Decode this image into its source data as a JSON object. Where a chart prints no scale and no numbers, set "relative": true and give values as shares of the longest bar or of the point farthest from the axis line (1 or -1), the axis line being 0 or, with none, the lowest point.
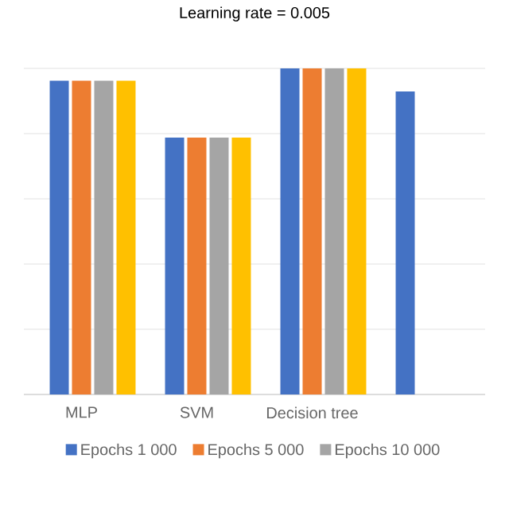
{
  "chart_data": {
    "type": "bar",
    "title": "Learning rate = 0.005",
    "relative": true,
    "grid": "y",
    "legend": "bottom",
    "categories": [
      "MLP",
      "SVM",
      "Decision tree",
      null
    ],
    "series": [
      {
        "name": "Epochs 1 000",
        "color": "#4472c4",
        "values": [
          0.962,
          0.788,
          1,
          0.929
        ]
      },
      {
        "name": "Epochs 5 000",
        "color": "#ed7d31",
        "values": [
          0.962,
          0.788,
          1,
          null
        ]
      },
      {
        "name": "Epochs 10 000",
        "color": "#a5a5a5",
        "values": [
          0.962,
          0.788,
          1,
          null
        ]
      },
      {
        "color": "#ffc000",
        "values": [
          0.962,
          0.788,
          1,
          null
        ]
      }
    ]
  }
}
